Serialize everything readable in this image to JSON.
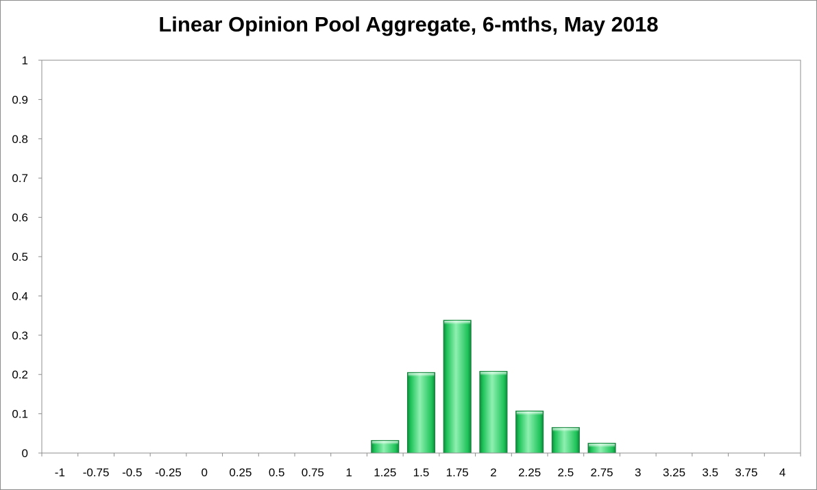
{
  "chart_data": {
    "type": "bar",
    "title": "Linear Opinion Pool Aggregate, 6-mths, May 2018",
    "xlabel": "",
    "ylabel": "",
    "categories": [
      "-1",
      "-0.75",
      "-0.5",
      "-0.25",
      "0",
      "0.25",
      "0.5",
      "0.75",
      "1",
      "1.25",
      "1.5",
      "1.75",
      "2",
      "2.25",
      "2.5",
      "2.75",
      "3",
      "3.25",
      "3.5",
      "3.75",
      "4"
    ],
    "values": [
      0,
      0,
      0,
      0,
      0,
      0,
      0,
      0,
      0,
      0.032,
      0.205,
      0.338,
      0.208,
      0.107,
      0.065,
      0.025,
      0,
      0,
      0,
      0,
      0
    ],
    "ylim": [
      0,
      1
    ],
    "yticks": [
      "0",
      "0.1",
      "0.2",
      "0.3",
      "0.4",
      "0.5",
      "0.6",
      "0.7",
      "0.8",
      "0.9",
      "1"
    ],
    "grid": false,
    "legend": "none",
    "colors": {
      "bar_fill": "#1fc35a",
      "bar_highlight": "#8ef0b0",
      "bar_shadow": "#0e8a3c",
      "bar_outline": "#17803c",
      "axis": "#8c8c8c"
    }
  }
}
